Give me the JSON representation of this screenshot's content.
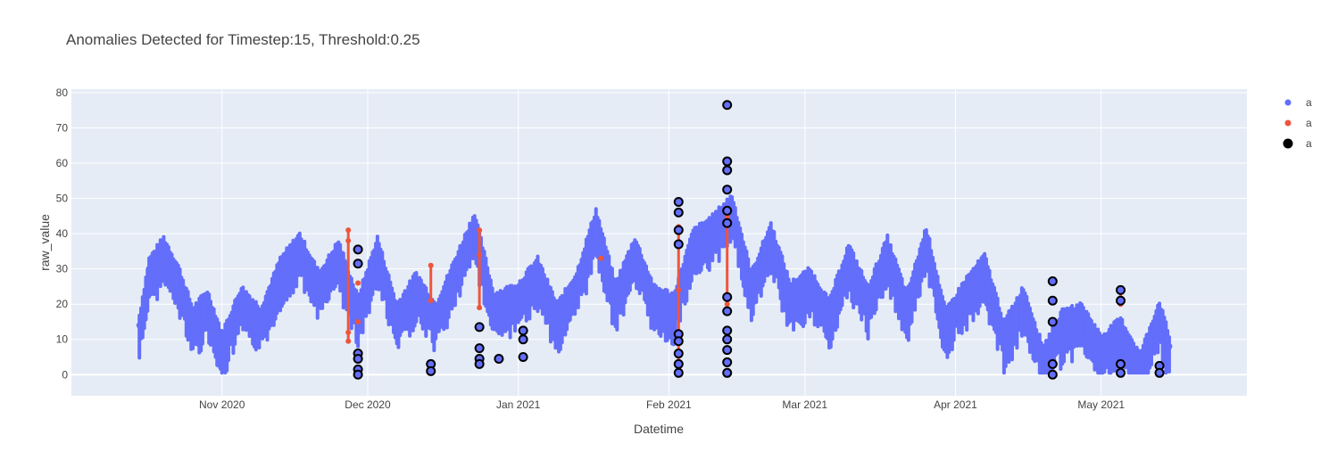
{
  "chart_data": {
    "type": "scatter",
    "title": "Anomalies Detected for Timestep:15, Threshold:0.25",
    "xlabel": "Datetime",
    "ylabel": "raw_value",
    "xlim": [
      "2020-10-01",
      "2021-05-31"
    ],
    "ylim": [
      -6,
      81
    ],
    "x_ticks": [
      {
        "date": "2020-11-01",
        "label": "Nov 2020"
      },
      {
        "date": "2020-12-01",
        "label": "Dec 2020"
      },
      {
        "date": "2021-01-01",
        "label": "Jan 2021"
      },
      {
        "date": "2021-02-01",
        "label": "Feb 2021"
      },
      {
        "date": "2021-03-01",
        "label": "Mar 2021"
      },
      {
        "date": "2021-04-01",
        "label": "Apr 2021"
      },
      {
        "date": "2021-05-01",
        "label": "May 2021"
      }
    ],
    "y_ticks": [
      0,
      10,
      20,
      30,
      40,
      50,
      60,
      70,
      80
    ],
    "grid": true,
    "legend_position": "right",
    "series": [
      {
        "name": "a",
        "color": "#636efa",
        "marker": "dot",
        "points": [
          [
            "2020-10-15",
            14
          ],
          [
            "2020-10-17",
            30
          ],
          [
            "2020-10-20",
            36
          ],
          [
            "2020-10-23",
            28
          ],
          [
            "2020-10-26",
            16
          ],
          [
            "2020-10-29",
            21
          ],
          [
            "2020-11-01",
            9
          ],
          [
            "2020-11-05",
            22
          ],
          [
            "2020-11-09",
            16
          ],
          [
            "2020-11-13",
            30
          ],
          [
            "2020-11-17",
            37
          ],
          [
            "2020-11-21",
            26
          ],
          [
            "2020-11-25",
            35
          ],
          [
            "2020-11-29",
            19
          ],
          [
            "2020-12-03",
            36
          ],
          [
            "2020-12-07",
            17
          ],
          [
            "2020-12-11",
            26
          ],
          [
            "2020-12-15",
            17
          ],
          [
            "2020-12-19",
            30
          ],
          [
            "2020-12-23",
            43
          ],
          [
            "2020-12-27",
            20
          ],
          [
            "2021-01-01",
            23
          ],
          [
            "2021-01-05",
            30
          ],
          [
            "2021-01-09",
            17
          ],
          [
            "2021-01-13",
            26
          ],
          [
            "2021-01-17",
            44
          ],
          [
            "2021-01-21",
            23
          ],
          [
            "2021-01-25",
            36
          ],
          [
            "2021-01-29",
            22
          ],
          [
            "2021-02-02",
            20
          ],
          [
            "2021-02-06",
            38
          ],
          [
            "2021-02-10",
            42
          ],
          [
            "2021-02-14",
            48
          ],
          [
            "2021-02-18",
            26
          ],
          [
            "2021-02-22",
            40
          ],
          [
            "2021-02-26",
            23
          ],
          [
            "2021-03-02",
            27
          ],
          [
            "2021-03-06",
            18
          ],
          [
            "2021-03-10",
            34
          ],
          [
            "2021-03-14",
            22
          ],
          [
            "2021-03-18",
            36
          ],
          [
            "2021-03-22",
            20
          ],
          [
            "2021-03-26",
            39
          ],
          [
            "2021-03-30",
            15
          ],
          [
            "2021-04-03",
            24
          ],
          [
            "2021-04-07",
            31
          ],
          [
            "2021-04-11",
            12
          ],
          [
            "2021-04-15",
            22
          ],
          [
            "2021-04-19",
            5
          ],
          [
            "2021-04-23",
            15
          ],
          [
            "2021-04-27",
            17
          ],
          [
            "2021-05-01",
            8
          ],
          [
            "2021-05-05",
            13
          ],
          [
            "2021-05-09",
            3
          ],
          [
            "2021-05-13",
            18
          ],
          [
            "2021-05-15",
            8
          ]
        ]
      },
      {
        "name": "a",
        "color": "#ef553b",
        "marker": "dot",
        "points": [
          [
            "2020-11-27",
            41
          ],
          [
            "2020-11-27",
            38
          ],
          [
            "2020-11-27",
            12
          ],
          [
            "2020-11-27",
            9.5
          ],
          [
            "2020-11-29",
            26
          ],
          [
            "2020-11-29",
            15
          ],
          [
            "2020-12-14",
            31
          ],
          [
            "2020-12-14",
            21
          ],
          [
            "2020-12-24",
            41
          ],
          [
            "2020-12-24",
            34
          ],
          [
            "2020-12-24",
            19
          ],
          [
            "2021-01-18",
            33
          ],
          [
            "2021-02-03",
            42
          ],
          [
            "2021-02-03",
            24
          ],
          [
            "2021-02-03",
            3
          ],
          [
            "2021-02-13",
            45
          ],
          [
            "2021-02-13",
            20
          ],
          [
            "2021-05-05",
            24
          ],
          [
            "2021-05-05",
            20
          ]
        ]
      },
      {
        "name": "a",
        "color": "#000000",
        "marker": "circle-open",
        "points": [
          [
            "2020-11-29",
            35.5
          ],
          [
            "2020-11-29",
            31.5
          ],
          [
            "2020-11-29",
            6
          ],
          [
            "2020-11-29",
            4.5
          ],
          [
            "2020-11-29",
            1.5
          ],
          [
            "2020-11-29",
            0
          ],
          [
            "2020-12-14",
            3
          ],
          [
            "2020-12-14",
            1
          ],
          [
            "2020-12-24",
            13.5
          ],
          [
            "2020-12-24",
            7.5
          ],
          [
            "2020-12-24",
            4.5
          ],
          [
            "2020-12-24",
            3
          ],
          [
            "2020-12-28",
            4.5
          ],
          [
            "2021-01-02",
            12.5
          ],
          [
            "2021-01-02",
            10
          ],
          [
            "2021-01-02",
            5
          ],
          [
            "2021-02-03",
            49
          ],
          [
            "2021-02-03",
            46
          ],
          [
            "2021-02-03",
            41
          ],
          [
            "2021-02-03",
            37
          ],
          [
            "2021-02-03",
            11.5
          ],
          [
            "2021-02-03",
            9.5
          ],
          [
            "2021-02-03",
            6
          ],
          [
            "2021-02-03",
            3
          ],
          [
            "2021-02-03",
            0.5
          ],
          [
            "2021-02-13",
            76.5
          ],
          [
            "2021-02-13",
            60.5
          ],
          [
            "2021-02-13",
            58
          ],
          [
            "2021-02-13",
            52.5
          ],
          [
            "2021-02-13",
            46.5
          ],
          [
            "2021-02-13",
            43
          ],
          [
            "2021-02-13",
            22
          ],
          [
            "2021-02-13",
            18
          ],
          [
            "2021-02-13",
            12.5
          ],
          [
            "2021-02-13",
            10
          ],
          [
            "2021-02-13",
            7
          ],
          [
            "2021-02-13",
            3.5
          ],
          [
            "2021-02-13",
            0.5
          ],
          [
            "2021-04-21",
            26.5
          ],
          [
            "2021-04-21",
            21
          ],
          [
            "2021-04-21",
            15
          ],
          [
            "2021-04-21",
            3
          ],
          [
            "2021-04-21",
            0
          ],
          [
            "2021-05-05",
            24
          ],
          [
            "2021-05-05",
            21
          ],
          [
            "2021-05-05",
            3
          ],
          [
            "2021-05-05",
            0.5
          ],
          [
            "2021-05-13",
            2.5
          ],
          [
            "2021-05-13",
            0.5
          ]
        ]
      }
    ]
  }
}
